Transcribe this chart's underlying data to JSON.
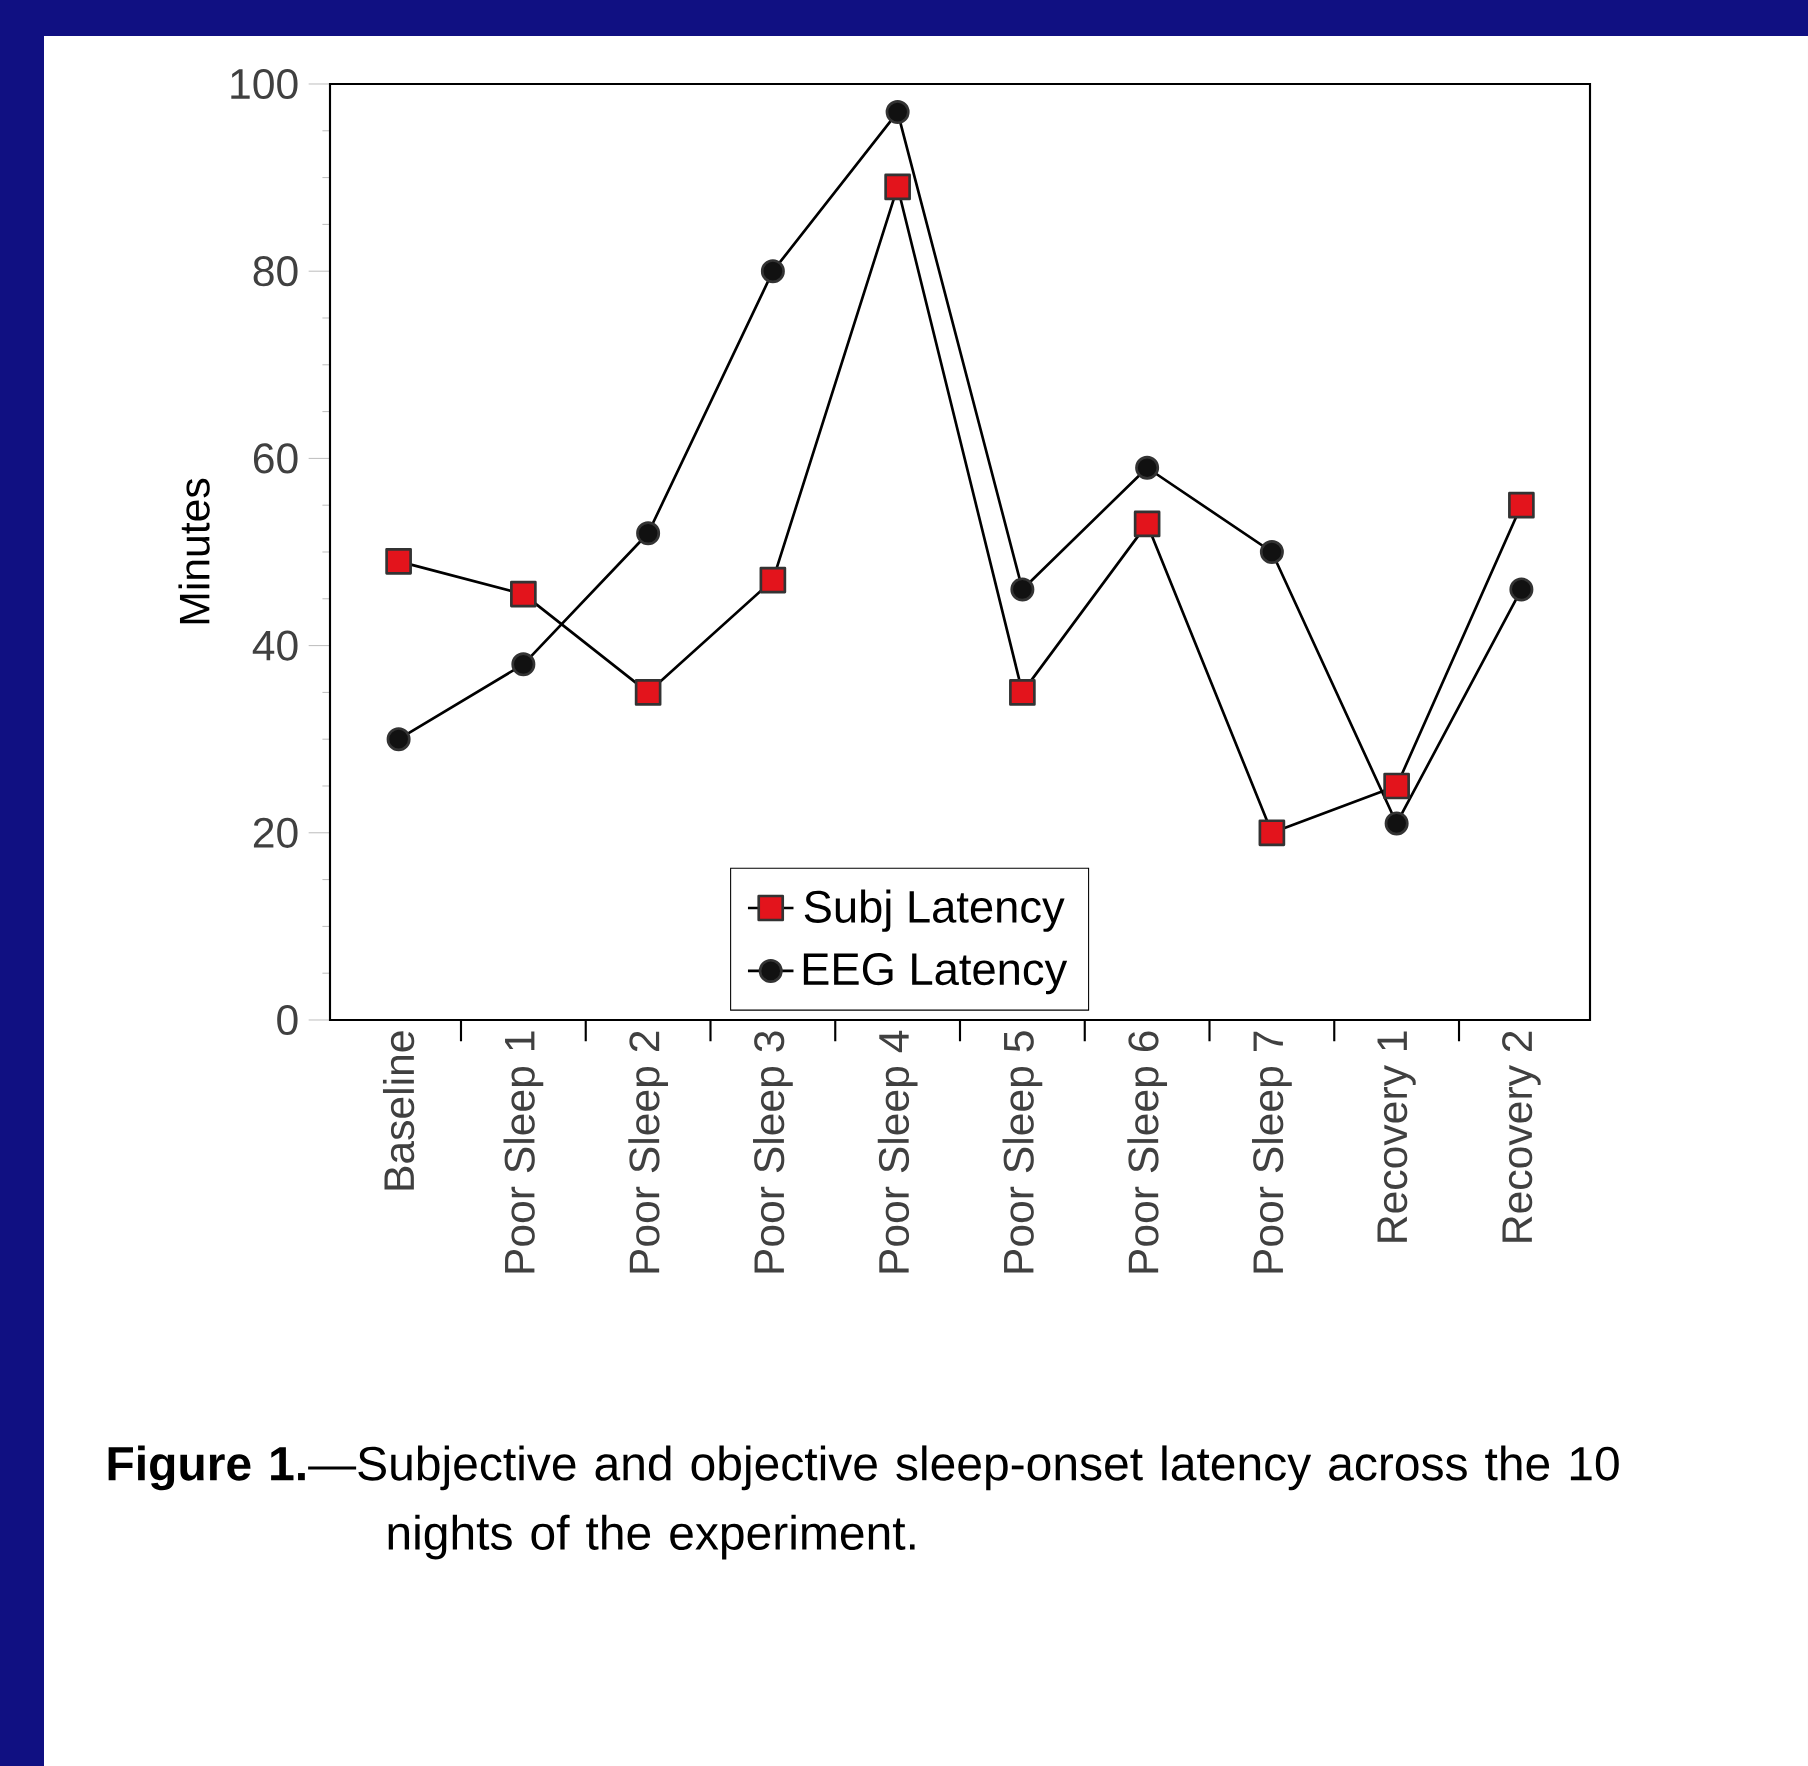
{
  "chart_data": {
    "type": "line",
    "ylabel": "Minutes",
    "categories": [
      "Baseline",
      "Poor Sleep 1",
      "Poor Sleep 2",
      "Poor Sleep 3",
      "Poor Sleep 4",
      "Poor Sleep 5",
      "Poor Sleep 6",
      "Poor Sleep 7",
      "Recovery 1",
      "Recovery 2"
    ],
    "series": [
      {
        "name": "Subj Latency",
        "color": "#e3141c",
        "marker": "square",
        "values": [
          49,
          45.5,
          35,
          47,
          89,
          35,
          53,
          20,
          25,
          55
        ]
      },
      {
        "name": "EEG Latency",
        "color": "#111111",
        "marker": "circle",
        "values": [
          30,
          38,
          52,
          80,
          97,
          46,
          59,
          50,
          21,
          46
        ]
      }
    ],
    "ylim": [
      0,
      100
    ],
    "yticks": [
      0,
      20,
      40,
      60,
      80,
      100
    ],
    "legend": "bottom",
    "grid": false,
    "line_style": "solid",
    "annotations": [
      "**Figure 1.**—Subjective and objective sleep-onset latency across the 10 nights of the experiment."
    ]
  }
}
